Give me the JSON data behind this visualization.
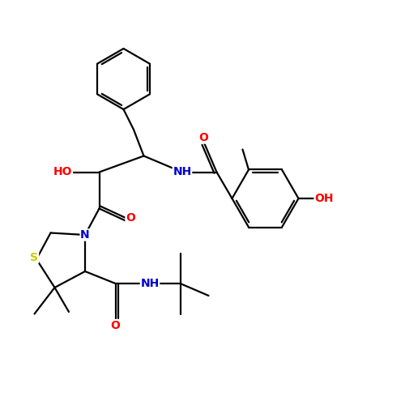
{
  "bg_color": "#ffffff",
  "figsize": [
    5.0,
    5.0
  ],
  "dpi": 100,
  "bond_color": "#000000",
  "bond_lw": 1.6,
  "atom_colors": {
    "O": "#ff0000",
    "N": "#0000cc",
    "S": "#cccc00",
    "C": "#000000"
  },
  "font_size": 10,
  "font_size_small": 9,
  "xlim": [
    0,
    10
  ],
  "ylim": [
    0,
    10
  ]
}
